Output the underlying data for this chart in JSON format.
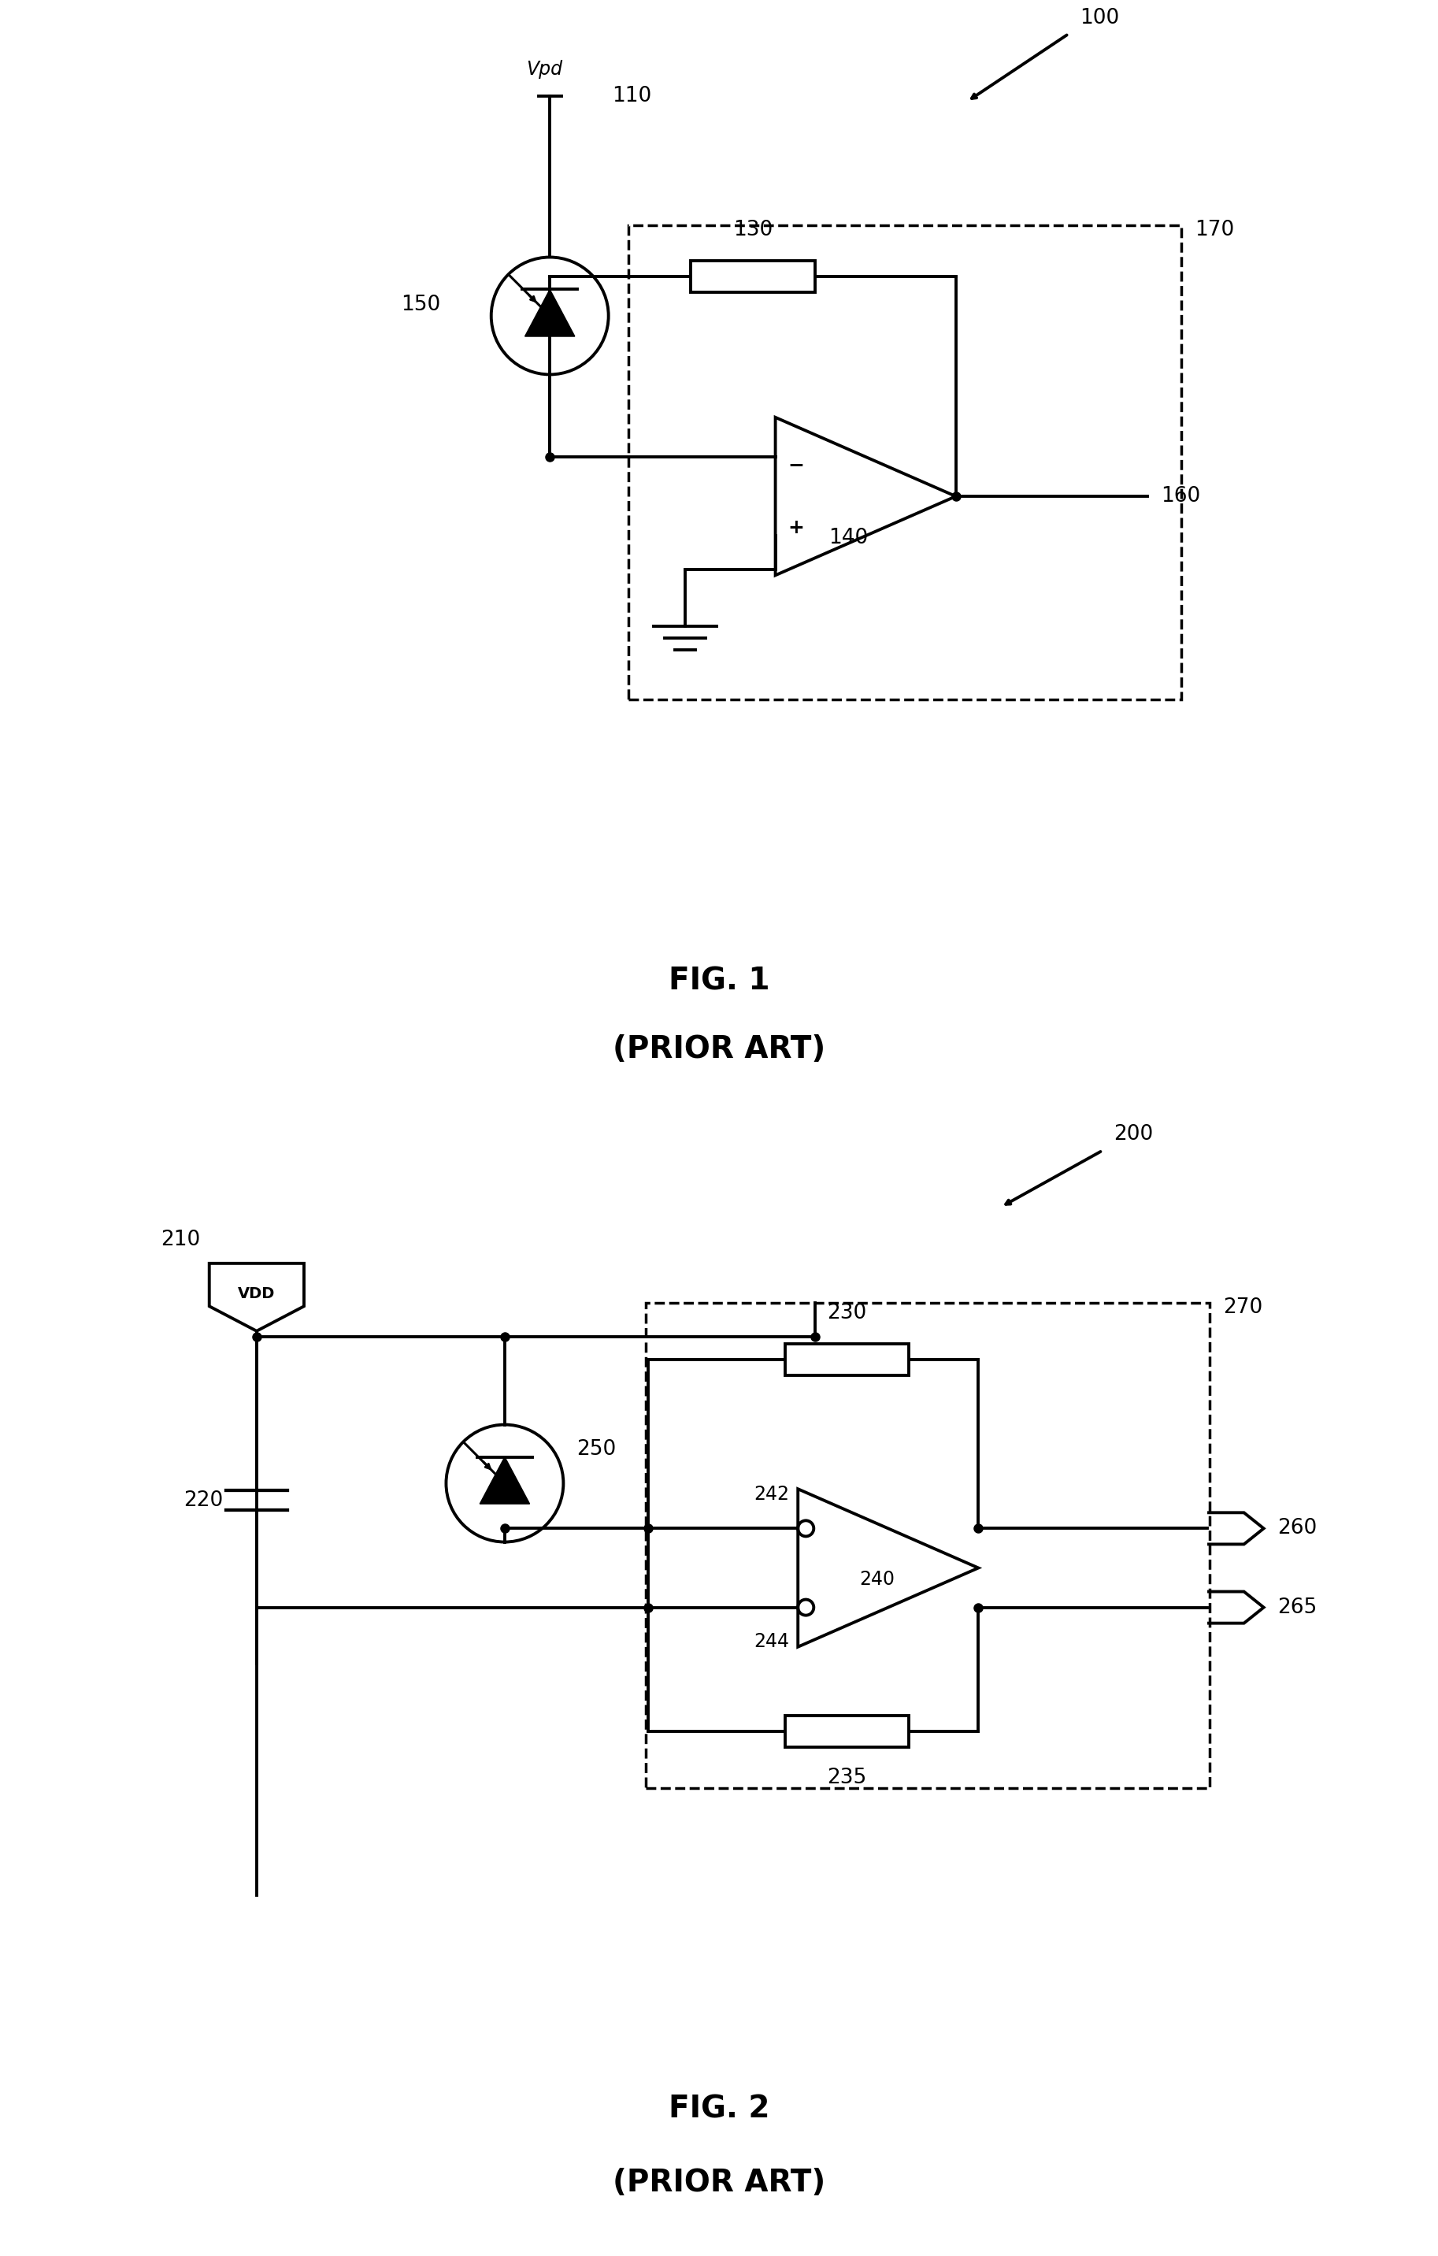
{
  "fig1": {
    "title1": "FIG. 1",
    "title2": "(PRIOR ART)",
    "label_100": "100",
    "label_110": "110",
    "label_130": "130",
    "label_140": "140",
    "label_150": "150",
    "label_160": "160",
    "label_170": "170",
    "vpd_label": "Vpd"
  },
  "fig2": {
    "title1": "FIG. 2",
    "title2": "(PRIOR ART)",
    "label_200": "200",
    "label_210": "210",
    "label_220": "220",
    "label_230": "230",
    "label_235": "235",
    "label_240": "240",
    "label_242": "242",
    "label_244": "244",
    "label_250": "250",
    "label_260": "260",
    "label_265": "265",
    "label_270": "270",
    "vdd_label": "VDD"
  },
  "line_color": "#000000",
  "bg_color": "#ffffff",
  "lw": 2.8
}
